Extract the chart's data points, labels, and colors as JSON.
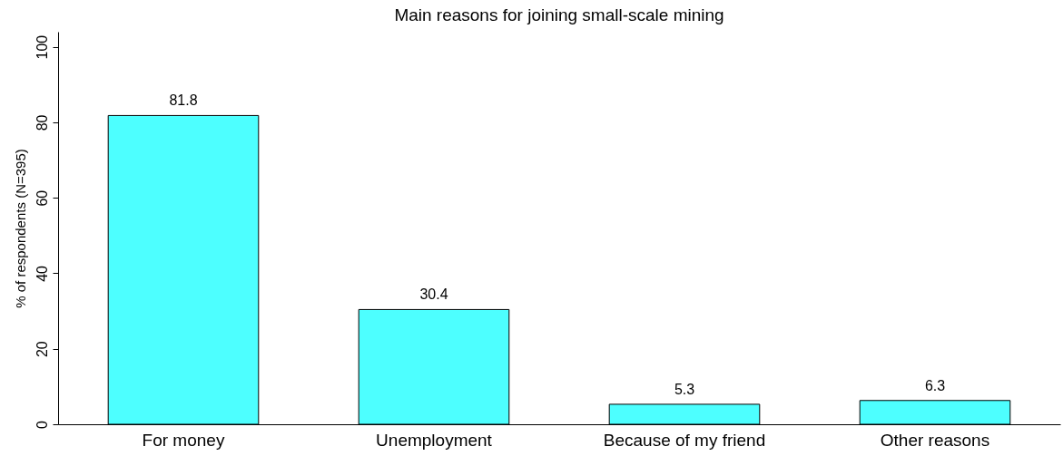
{
  "chart_data": {
    "type": "bar",
    "title": "Main reasons for joining small-scale mining",
    "ylabel": "% of respondents (N=395)",
    "categories": [
      "For money",
      "Unemployment",
      "Because of my friend",
      "Other reasons"
    ],
    "values": [
      81.8,
      30.4,
      5.3,
      6.3
    ],
    "color": "#4dffff",
    "ylim": [
      0,
      104
    ],
    "yticks": [
      0,
      20,
      40,
      60,
      80,
      100
    ],
    "grid": false,
    "data_labels": true
  }
}
